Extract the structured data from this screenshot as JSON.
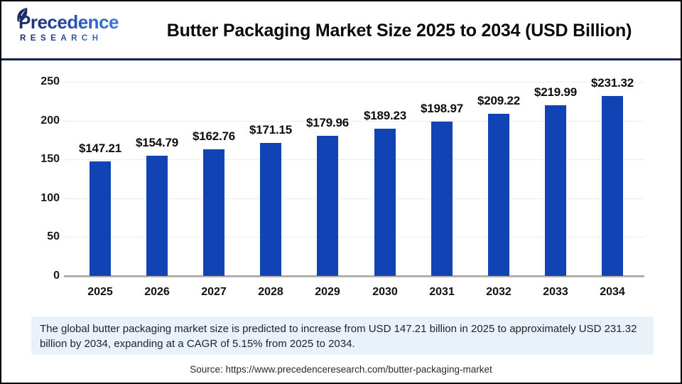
{
  "header": {
    "logo": {
      "name": "Precedence",
      "subname": "RESEARCH"
    },
    "title": "Butter Packaging Market Size 2025 to 2034 (USD Billion)"
  },
  "chart_data": {
    "type": "bar",
    "title": "Butter Packaging Market Size 2025 to 2034 (USD Billion)",
    "categories": [
      "2025",
      "2026",
      "2027",
      "2028",
      "2029",
      "2030",
      "2031",
      "2032",
      "2033",
      "2034"
    ],
    "values": [
      147.21,
      154.79,
      162.76,
      171.15,
      179.96,
      189.23,
      198.97,
      209.22,
      219.99,
      231.32
    ],
    "value_prefix": "$",
    "unit": "USD Billion",
    "xlabel": "",
    "ylabel": "",
    "ylim": [
      0,
      250
    ],
    "yticks": [
      0,
      50,
      100,
      150,
      200,
      250
    ],
    "grid": true,
    "legend": "none",
    "bar_color": "#1243b5"
  },
  "footer": {
    "note": "The global butter packaging market size is predicted to increase from USD 147.21 billion in 2025 to approximately USD 231.32 billion by 2034, expanding at a CAGR of 5.15% from 2025 to 2034.",
    "source": "Source: https://www.precedenceresearch.com/butter-packaging-market"
  },
  "colors": {
    "bar": "#1243b5",
    "divider": "#17214d",
    "note_background": "#e9f1f9",
    "gridline": "#ececec",
    "axis_baseline": "#b0b0b0",
    "logo_navy": "#1c2b66",
    "logo_blue": "#3a7de4"
  }
}
